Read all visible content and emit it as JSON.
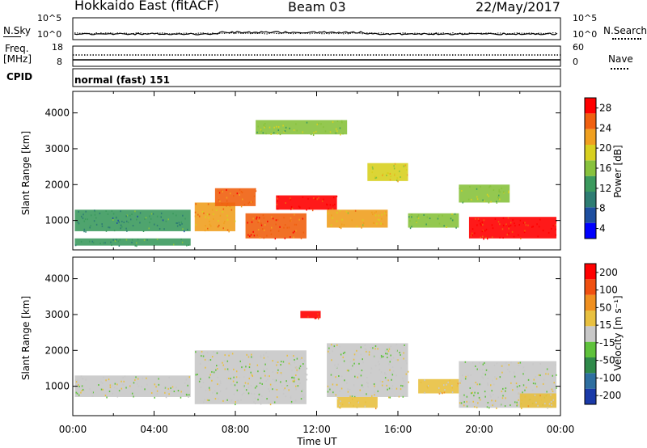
{
  "header": {
    "station": "Hokkaido East (fitACF)",
    "beam": "Beam 03",
    "date": "22/May/2017"
  },
  "noise_panel": {
    "left_label": "N.Sky",
    "right_label": "N.Search",
    "left_ticks": [
      "10^5",
      "10^0"
    ],
    "right_ticks": [
      "10^5",
      "10^0"
    ]
  },
  "freq_panel": {
    "left_label_1": "Freq.",
    "left_label_2": "[MHz]",
    "left_ticks": [
      "18",
      "8"
    ],
    "right_label": "Nave",
    "right_ticks": [
      "60",
      "0"
    ]
  },
  "cpid_panel": {
    "label": "CPID",
    "mode": "normal (fast) 151"
  },
  "power_panel": {
    "ylabel": "Slant Range [km]",
    "yticks": [
      "4000",
      "3000",
      "2000",
      "1000"
    ],
    "colorbar_label": "Power [dB]",
    "colorbar_ticks": [
      "28",
      "24",
      "20",
      "16",
      "12",
      "8",
      "4"
    ],
    "colors": [
      "#0000ff",
      "#1e4fa0",
      "#2e7d73",
      "#3c9a5e",
      "#88c23d",
      "#d8d020",
      "#f0a020",
      "#f06010",
      "#ff0000"
    ]
  },
  "velocity_panel": {
    "ylabel": "Slant Range [km]",
    "yticks": [
      "4000",
      "3000",
      "2000",
      "1000"
    ],
    "colorbar_label": "Velocity [m s⁻¹]",
    "colorbar_ticks": [
      "200",
      "100",
      "50",
      "15",
      "-15",
      "-50",
      "-100",
      "-200"
    ],
    "colors": [
      "#1a3aa8",
      "#2e6fa0",
      "#2f8a4a",
      "#5fc23c",
      "#c8c8c8",
      "#e8c040",
      "#f09020",
      "#f05010",
      "#ff0000"
    ]
  },
  "xaxis": {
    "label": "Time UT",
    "ticks": [
      "00:00",
      "04:00",
      "08:00",
      "12:00",
      "16:00",
      "20:00",
      "00:00"
    ]
  },
  "chart_data": [
    {
      "type": "heatmap",
      "title": "Power",
      "xlabel": "Time UT",
      "ylabel": "Slant Range [km]",
      "xlim": [
        0,
        24
      ],
      "ylim": [
        180,
        4600
      ],
      "zlim": [
        0,
        30
      ],
      "colorbar_label": "Power [dB]",
      "regions": [
        {
          "t": [
            0.1,
            5.8
          ],
          "r": [
            700,
            1300
          ],
          "value": 10
        },
        {
          "t": [
            0.1,
            5.8
          ],
          "r": [
            300,
            500
          ],
          "value": 12
        },
        {
          "t": [
            6.0,
            8.0
          ],
          "r": [
            700,
            1500
          ],
          "value": 22
        },
        {
          "t": [
            7.0,
            9.0
          ],
          "r": [
            1400,
            1900
          ],
          "value": 24
        },
        {
          "t": [
            8.5,
            11.5
          ],
          "r": [
            500,
            1200
          ],
          "value": 26
        },
        {
          "t": [
            10.0,
            13.0
          ],
          "r": [
            1300,
            1700
          ],
          "value": 28
        },
        {
          "t": [
            12.5,
            15.5
          ],
          "r": [
            800,
            1300
          ],
          "value": 20
        },
        {
          "t": [
            14.5,
            16.5
          ],
          "r": [
            2100,
            2600
          ],
          "value": 18
        },
        {
          "t": [
            16.5,
            19.0
          ],
          "r": [
            800,
            1200
          ],
          "value": 14
        },
        {
          "t": [
            19.5,
            23.8
          ],
          "r": [
            500,
            1100
          ],
          "value": 28
        },
        {
          "t": [
            19.0,
            21.5
          ],
          "r": [
            1500,
            2000
          ],
          "value": 16
        },
        {
          "t": [
            9.0,
            13.5
          ],
          "r": [
            3400,
            3800
          ],
          "value": 16
        }
      ]
    },
    {
      "type": "heatmap",
      "title": "Velocity",
      "xlabel": "Time UT",
      "ylabel": "Slant Range [km]",
      "xlim": [
        0,
        24
      ],
      "ylim": [
        180,
        4600
      ],
      "zlim": [
        -250,
        250
      ],
      "colorbar_label": "Velocity [m s⁻¹]",
      "regions": [
        {
          "t": [
            0.1,
            5.8
          ],
          "r": [
            700,
            1300
          ],
          "value": 0
        },
        {
          "t": [
            6.0,
            11.5
          ],
          "r": [
            500,
            2000
          ],
          "value": 0
        },
        {
          "t": [
            11.2,
            12.2
          ],
          "r": [
            2900,
            3100
          ],
          "value": 220
        },
        {
          "t": [
            12.5,
            16.5
          ],
          "r": [
            700,
            2200
          ],
          "value": 0
        },
        {
          "t": [
            13.0,
            15.0
          ],
          "r": [
            400,
            700
          ],
          "value": 30
        },
        {
          "t": [
            17.0,
            19.0
          ],
          "r": [
            800,
            1200
          ],
          "value": 30
        },
        {
          "t": [
            19.0,
            23.8
          ],
          "r": [
            400,
            1700
          ],
          "value": 0
        },
        {
          "t": [
            22.0,
            23.8
          ],
          "r": [
            400,
            800
          ],
          "value": 40
        }
      ]
    }
  ]
}
